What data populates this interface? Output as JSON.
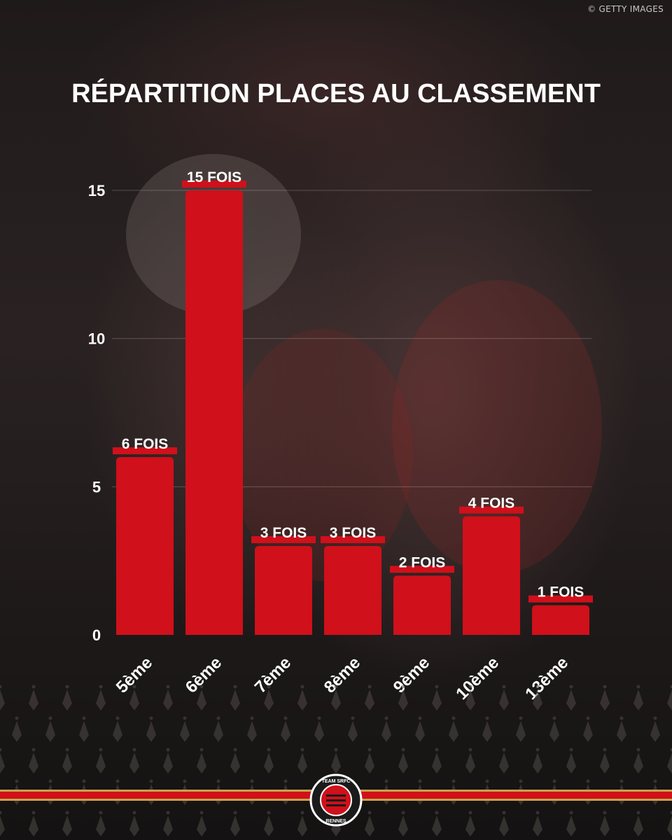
{
  "credit": "© GETTY IMAGES",
  "chart_data": {
    "type": "bar",
    "title": "RÉPARTITION PLACES AU CLASSEMENT",
    "categories": [
      "5ème",
      "6ème",
      "7ème",
      "8ème",
      "9ème",
      "10ème",
      "13ème"
    ],
    "values": [
      6,
      15,
      3,
      3,
      2,
      4,
      1
    ],
    "data_labels": [
      "6 FOIS",
      "15 FOIS",
      "3 FOIS",
      "3 FOIS",
      "2 FOIS",
      "4 FOIS",
      "1 FOIS"
    ],
    "yticks": [
      0,
      5,
      10,
      15
    ],
    "ylim": [
      0,
      15
    ],
    "grid": true,
    "bar_color": "#d0101a",
    "label_color": "#d0101a"
  },
  "logo": {
    "top_text": "TEAM SRFC",
    "bottom_text": "RENNES"
  }
}
